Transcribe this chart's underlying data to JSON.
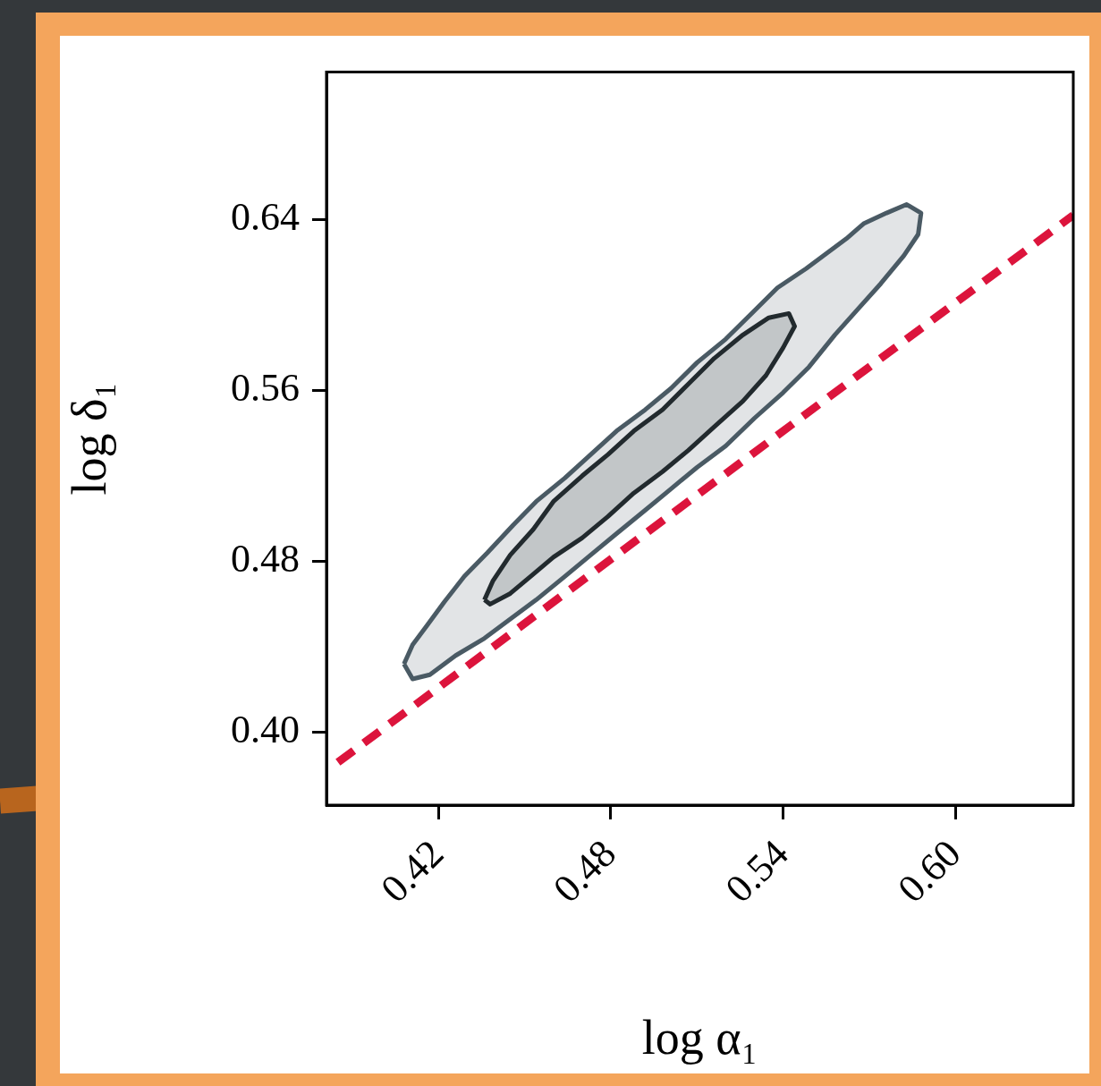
{
  "chart_data": {
    "type": "area",
    "xlabel": "log α₁",
    "ylabel": "log δ₁",
    "xlim": [
      0.381,
      0.641
    ],
    "ylim": [
      0.366,
      0.709
    ],
    "xticks": [
      0.42,
      0.48,
      0.54,
      {
        "value": 0.6,
        "label": "0.60"
      }
    ],
    "yticks": [
      {
        "value": 0.4,
        "label": "0.40"
      },
      0.48,
      0.56,
      0.64
    ],
    "grid": false,
    "legend": false,
    "marker": "none",
    "series": [
      {
        "color": "#4a5a64",
        "x": [
          0.408,
          0.411,
          0.416,
          0.422,
          0.429,
          0.437,
          0.446,
          0.454,
          0.464,
          0.473,
          0.482,
          0.492,
          0.501,
          0.51,
          0.52,
          0.529,
          0.538,
          0.548,
          0.555,
          0.562,
          0.568,
          0.576,
          0.583,
          0.588,
          0.587,
          0.582,
          0.574,
          0.566,
          0.558,
          0.549,
          0.54,
          0.53,
          0.52,
          0.51,
          0.501,
          0.492,
          0.482,
          0.473,
          0.464,
          0.454,
          0.445,
          0.436,
          0.426,
          0.417,
          0.411,
          0.408
        ],
        "values": [
          0.432,
          0.441,
          0.45,
          0.461,
          0.473,
          0.484,
          0.497,
          0.508,
          0.519,
          0.53,
          0.541,
          0.551,
          0.561,
          0.573,
          0.584,
          0.596,
          0.608,
          0.617,
          0.624,
          0.631,
          0.638,
          0.643,
          0.647,
          0.643,
          0.633,
          0.623,
          0.61,
          0.598,
          0.586,
          0.571,
          0.559,
          0.547,
          0.534,
          0.524,
          0.514,
          0.504,
          0.493,
          0.483,
          0.473,
          0.462,
          0.453,
          0.444,
          0.436,
          0.427,
          0.425,
          0.432
        ]
      },
      {
        "color": "#222a2e",
        "x": [
          0.436,
          0.439,
          0.445,
          0.453,
          0.46,
          0.47,
          0.479,
          0.488,
          0.498,
          0.507,
          0.516,
          0.526,
          0.535,
          0.542,
          0.544,
          0.54,
          0.534,
          0.526,
          0.516,
          0.507,
          0.498,
          0.488,
          0.479,
          0.47,
          0.46,
          0.453,
          0.445,
          0.438,
          0.436
        ],
        "values": [
          0.462,
          0.471,
          0.483,
          0.495,
          0.508,
          0.52,
          0.53,
          0.541,
          0.551,
          0.563,
          0.575,
          0.586,
          0.594,
          0.596,
          0.59,
          0.58,
          0.567,
          0.555,
          0.543,
          0.532,
          0.522,
          0.512,
          0.501,
          0.491,
          0.482,
          0.474,
          0.465,
          0.46,
          0.462
        ]
      },
      {
        "type": "line",
        "color": "#dc143c",
        "line_style": "dashed",
        "x": [
          0.385,
          0.641
        ],
        "values": [
          0.386,
          0.642
        ]
      }
    ]
  }
}
